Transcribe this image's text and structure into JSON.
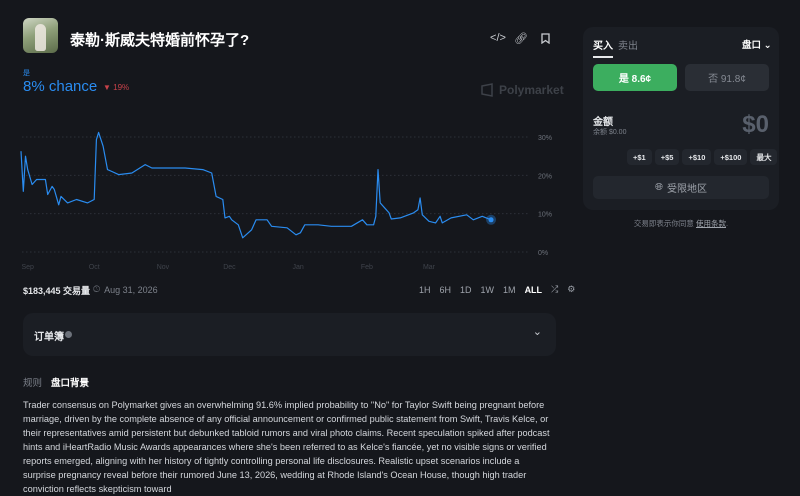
{
  "header": {
    "title": "泰勒·斯威夫特婚前怀孕了?",
    "icons": [
      "code-icon",
      "link-icon",
      "bookmark-icon"
    ]
  },
  "outcome": {
    "label": "是",
    "chance": "8% chance",
    "change": "19%",
    "change_direction": "down",
    "accent": "#2a8cf0",
    "down_color": "#c8424a"
  },
  "watermark": "Polymarket",
  "chart_data": {
    "type": "line",
    "x_type": "date",
    "x": [
      "2025-08-29",
      "2025-08-30",
      "2025-08-31",
      "2025-09-01",
      "2025-09-03",
      "2025-09-05",
      "2025-09-09",
      "2025-09-10",
      "2025-09-12",
      "2025-09-13",
      "2025-09-15",
      "2025-09-16",
      "2025-09-19",
      "2025-09-23",
      "2025-09-28",
      "2025-10-01",
      "2025-10-02",
      "2025-10-03",
      "2025-10-05",
      "2025-10-07",
      "2025-10-09",
      "2025-10-12",
      "2025-10-18",
      "2025-10-24",
      "2025-10-27",
      "2025-11-05",
      "2025-11-11",
      "2025-11-19",
      "2025-11-23",
      "2025-11-25",
      "2025-11-28",
      "2025-11-29",
      "2025-12-01",
      "2025-12-02",
      "2025-12-05",
      "2025-12-07",
      "2025-12-11",
      "2025-12-13",
      "2025-12-18",
      "2025-12-20",
      "2025-12-27",
      "2025-12-31",
      "2026-01-02",
      "2026-01-04",
      "2026-01-10",
      "2026-01-16",
      "2026-01-25",
      "2026-01-30",
      "2026-02-01",
      "2026-02-04",
      "2026-02-05",
      "2026-02-06",
      "2026-02-07",
      "2026-02-11",
      "2026-02-12",
      "2026-02-16",
      "2026-02-22",
      "2026-02-24",
      "2026-02-25",
      "2026-02-26",
      "2026-03-01",
      "2026-03-04",
      "2026-03-06",
      "2026-03-07",
      "2026-03-11",
      "2026-03-18",
      "2026-03-21",
      "2026-03-25",
      "2026-03-29"
    ],
    "values": [
      26.3,
      15.8,
      25,
      21.5,
      17.6,
      18.9,
      18.9,
      15,
      17.1,
      16.3,
      12.3,
      14.5,
      12.8,
      13.7,
      12.8,
      13.7,
      29.3,
      31.2,
      27.6,
      21.5,
      21,
      20.2,
      20.6,
      22.8,
      21.9,
      21.9,
      21.9,
      21.5,
      20.6,
      14.5,
      13.7,
      8.9,
      9.3,
      8.4,
      7.1,
      3.7,
      5.8,
      8.4,
      8.4,
      6.7,
      6.3,
      4.5,
      5,
      7.1,
      7.1,
      6.7,
      6.7,
      8.4,
      7.1,
      7.1,
      9.3,
      21.5,
      12.8,
      10.2,
      8.6,
      8.9,
      10.2,
      11,
      14.1,
      9.7,
      8,
      7.6,
      9.3,
      7.6,
      8.9,
      9.7,
      8.4,
      9.3,
      8.4
    ],
    "y_ticks": [
      "30%",
      "20%",
      "10%",
      "0%"
    ],
    "x_ticks": [
      "Sep",
      "Oct",
      "Nov",
      "Dec",
      "Jan",
      "Feb",
      "Mar"
    ],
    "ylim": [
      0,
      30
    ],
    "grid": true,
    "line_color": "#2a8cf0"
  },
  "stats": {
    "volume": "$183,445 交易量",
    "end_date": "Aug 31, 2026"
  },
  "ranges": [
    "1H",
    "6H",
    "1D",
    "1W",
    "1M",
    "ALL"
  ],
  "active_range": "ALL",
  "orderbook": {
    "label": "订单簿"
  },
  "tabs": {
    "rules": "规则",
    "context": "盘口背景"
  },
  "context_text": "Trader consensus on Polymarket gives an overwhelming 91.6% implied probability to \"No\" for Taylor Swift being pregnant before marriage, driven by the complete absence of any official announcement or confirmed public statement from Swift, Travis Kelce, or their representatives amid persistent but debunked tabloid rumors and viral photo claims. Recent speculation spiked after podcast hints and iHeartRadio Music Awards appearances where she's been referred to as Kelce's fiancée, yet no visible signs or verified reports emerged, aligning with her history of tightly controlling personal life disclosures. Realistic upset scenarios include a surprise pregnancy reveal before their rumored June 13, 2026, wedding at Rhode Island's Ocean House, though high trader conviction reflects skepticism toward",
  "trade": {
    "buy": "买入",
    "sell": "卖出",
    "market": "盘口",
    "yes": "是 8.6¢",
    "no": "否 91.8¢",
    "yes_color": "#3cae5f",
    "amount_label": "金额",
    "balance": "余额 $0.00",
    "amount": "$0",
    "quick": [
      "+$1",
      "+$5",
      "+$10",
      "+$100",
      "最大"
    ],
    "restricted": "受限地区",
    "terms_prefix": "交易即表示你同意 ",
    "terms_link": "使用条款",
    "terms_suffix": "."
  }
}
